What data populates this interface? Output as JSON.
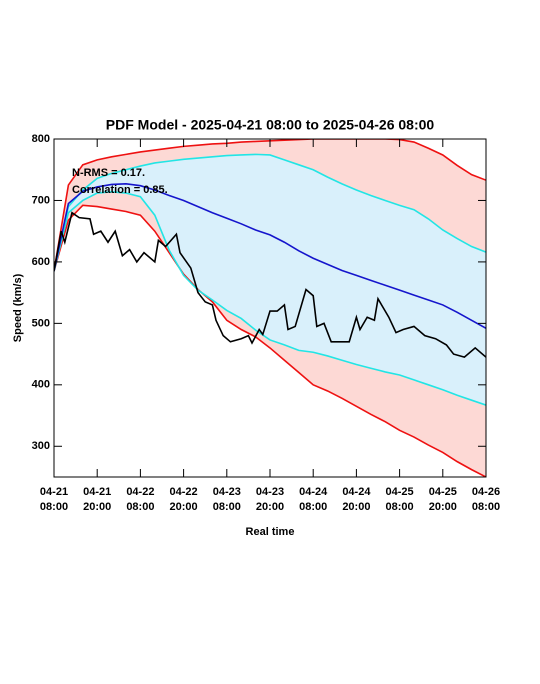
{
  "chart_data": {
    "type": "line",
    "title": "PDF Model - 2025-04-21 08:00 to 2025-04-26 08:00",
    "x_label": "Real time",
    "y_label": "Speed (km/s)",
    "annotations": [
      "N-RMS = 0.17.",
      "Correlation = 0.85."
    ],
    "xlim": [
      0,
      120
    ],
    "ylim": [
      250,
      800
    ],
    "xticks": [
      {
        "value": 0,
        "label": "04-21\n08:00"
      },
      {
        "value": 12,
        "label": "04-21\n20:00"
      },
      {
        "value": 24,
        "label": "04-22\n08:00"
      },
      {
        "value": 36,
        "label": "04-22\n20:00"
      },
      {
        "value": 48,
        "label": "04-23\n08:00"
      },
      {
        "value": 60,
        "label": "04-23\n20:00"
      },
      {
        "value": 72,
        "label": "04-24\n08:00"
      },
      {
        "value": 84,
        "label": "04-24\n20:00"
      },
      {
        "value": 96,
        "label": "04-25\n08:00"
      },
      {
        "value": 108,
        "label": "04-25\n20:00"
      },
      {
        "value": 120,
        "label": "04-26\n08:00"
      }
    ],
    "yticks": [
      300,
      400,
      500,
      600,
      700,
      800
    ],
    "grid": false,
    "x": [
      0,
      4,
      8,
      12,
      16,
      20,
      24,
      28,
      32,
      36,
      40,
      44,
      48,
      52,
      56,
      60,
      64,
      68,
      72,
      76,
      80,
      84,
      88,
      92,
      96,
      100,
      104,
      108,
      112,
      116,
      120
    ],
    "series": [
      {
        "color": "#ee1111",
        "band_fill": "#fdd9d5",
        "values": [
          585,
          725,
          758,
          766,
          771,
          775,
          779,
          782,
          785,
          788,
          790,
          792,
          793,
          795,
          796,
          797,
          798,
          799,
          800,
          800,
          800,
          800,
          800,
          800,
          799,
          795,
          785,
          774,
          757,
          742,
          733
        ]
      },
      {
        "color": "#ee1111",
        "values": [
          585,
          668,
          692,
          690,
          686,
          682,
          676,
          650,
          615,
          580,
          555,
          535,
          505,
          490,
          478,
          460,
          440,
          420,
          400,
          390,
          378,
          365,
          352,
          340,
          326,
          315,
          302,
          290,
          275,
          262,
          250
        ]
      },
      {
        "color": "#22e5e5",
        "band_fill": "#d9f0fb",
        "values": [
          585,
          690,
          717,
          736,
          744,
          750,
          756,
          761,
          764,
          767,
          769,
          771,
          773,
          774,
          775,
          774,
          766,
          758,
          750,
          738,
          727,
          717,
          708,
          700,
          692,
          685,
          670,
          652,
          638,
          625,
          616
        ]
      },
      {
        "color": "#22e5e5",
        "values": [
          585,
          680,
          700,
          712,
          714,
          712,
          706,
          676,
          619,
          578,
          554,
          538,
          521,
          508,
          489,
          473,
          465,
          456,
          453,
          447,
          440,
          433,
          427,
          421,
          416,
          408,
          400,
          392,
          383,
          375,
          367
        ]
      },
      {
        "color": "#1515cc",
        "values": [
          585,
          695,
          715,
          722,
          726,
          727,
          724,
          717,
          708,
          700,
          690,
          680,
          671,
          662,
          652,
          644,
          632,
          618,
          606,
          596,
          586,
          578,
          570,
          562,
          554,
          546,
          538,
          530,
          518,
          505,
          492
        ]
      },
      {
        "color": "#000000",
        "x": [
          0,
          2,
          3,
          5,
          7,
          10,
          11,
          13,
          15,
          17,
          19,
          21,
          23,
          25,
          28,
          29,
          31,
          34,
          35,
          38,
          40,
          42,
          44,
          45,
          47,
          49,
          52,
          54,
          55,
          57,
          58,
          60,
          62,
          64,
          65,
          67,
          70,
          72,
          73,
          75,
          77,
          82,
          84,
          85,
          87,
          89,
          90,
          93,
          95,
          97,
          100,
          103,
          106,
          109,
          111,
          114,
          117,
          120
        ],
        "values": [
          585,
          650,
          632,
          680,
          672,
          670,
          645,
          650,
          632,
          650,
          610,
          620,
          600,
          615,
          600,
          635,
          625,
          645,
          615,
          590,
          550,
          535,
          530,
          505,
          480,
          470,
          475,
          480,
          468,
          490,
          482,
          520,
          520,
          530,
          490,
          495,
          555,
          545,
          495,
          500,
          470,
          470,
          510,
          490,
          510,
          505,
          540,
          510,
          485,
          490,
          495,
          480,
          475,
          465,
          450,
          445,
          460,
          445
        ]
      }
    ]
  }
}
